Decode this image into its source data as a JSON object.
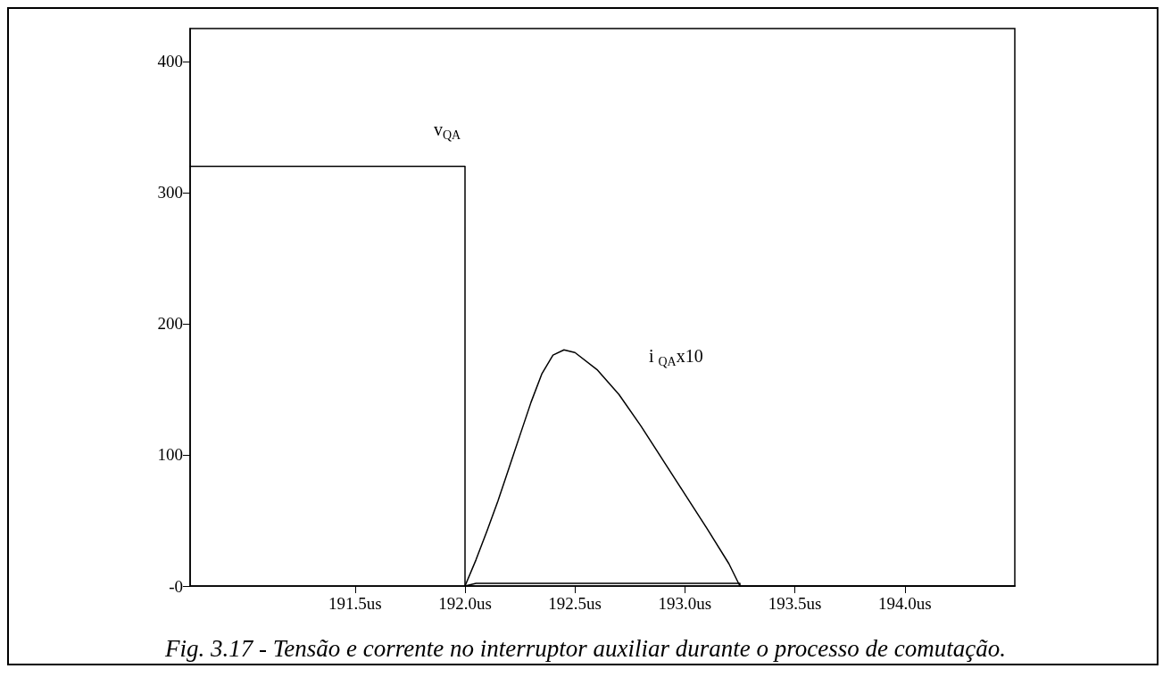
{
  "chart_data": {
    "type": "line",
    "title": "Fig. 3.17 - Tensão e corrente no interruptor auxiliar durante o processo de comutação.",
    "series": [
      {
        "name": "v$_{QA}$",
        "color": "#000000",
        "x": [
          190.75,
          192.0,
          192.0,
          192.05,
          193.25,
          193.25,
          194.5
        ],
        "values": [
          320,
          320,
          0,
          2,
          2,
          0,
          0
        ]
      },
      {
        "name": "i $_{QA}$x10",
        "color": "#000000",
        "x": [
          192.0,
          192.05,
          192.1,
          192.15,
          192.2,
          192.25,
          192.3,
          192.35,
          192.4,
          192.45,
          192.5,
          192.6,
          192.7,
          192.8,
          192.9,
          193.0,
          193.1,
          193.2,
          193.25
        ],
        "values": [
          0,
          20,
          42,
          65,
          90,
          115,
          140,
          162,
          176,
          180,
          178,
          165,
          146,
          122,
          96,
          70,
          44,
          17,
          0
        ]
      }
    ],
    "xlim": [
      190.75,
      194.5
    ],
    "xticks": [
      {
        "value": 191.5,
        "label": "191.5us"
      },
      {
        "value": 192.0,
        "label": "192.0us"
      },
      {
        "value": 192.5,
        "label": "192.5us"
      },
      {
        "value": 193.0,
        "label": "193.0us"
      },
      {
        "value": 193.5,
        "label": "193.5us"
      },
      {
        "value": 194.0,
        "label": "194.0us"
      }
    ],
    "ylim": [
      0,
      425
    ],
    "yticks": [
      {
        "value": 0,
        "label": "-0"
      },
      100,
      200,
      300,
      400
    ],
    "grid": false,
    "marker": "none",
    "line_style": "solid"
  }
}
